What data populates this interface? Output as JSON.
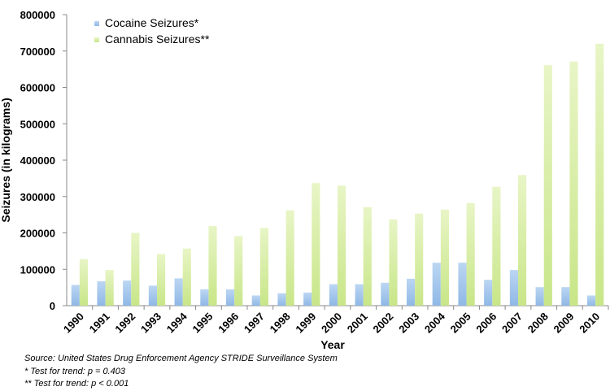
{
  "chart_data": {
    "type": "bar",
    "categories": [
      "1990",
      "1991",
      "1992",
      "1993",
      "1994",
      "1995",
      "1996",
      "1997",
      "1998",
      "1999",
      "2000",
      "2001",
      "2002",
      "2003",
      "2004",
      "2005",
      "2006",
      "2007",
      "2008",
      "2009",
      "2010"
    ],
    "series": [
      {
        "name": "Cocaine Seizures*",
        "color": "#8fb8e6",
        "values": [
          57000,
          67000,
          69000,
          55000,
          75000,
          45000,
          45000,
          28000,
          34000,
          36000,
          59000,
          59000,
          63000,
          74000,
          118000,
          118000,
          71000,
          98000,
          51000,
          51000,
          28000
        ]
      },
      {
        "name": "Cannabis Seizures**",
        "color": "#c8e688",
        "values": [
          128000,
          98000,
          200000,
          142000,
          157000,
          219000,
          191000,
          214000,
          262000,
          337000,
          330000,
          271000,
          237000,
          253000,
          264000,
          282000,
          327000,
          359000,
          661000,
          671000,
          720000
        ]
      }
    ],
    "xlabel": "Year",
    "ylabel": "Seizures (in kilograms)",
    "ylim": [
      0,
      800000
    ],
    "yticks": [
      "0",
      "100000",
      "200000",
      "300000",
      "400000",
      "500000",
      "600000",
      "700000",
      "800000"
    ],
    "grid": false,
    "legend_position": "top-left"
  },
  "notes": {
    "source": "Source: United States Drug Enforcement Agency  STRIDE Surveillance System",
    "note1": "*   Test for trend: p = 0.403",
    "note2": "** Test for trend: p < 0.001"
  }
}
